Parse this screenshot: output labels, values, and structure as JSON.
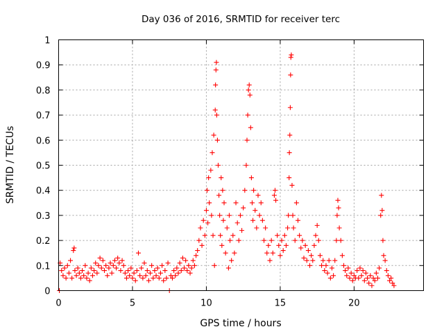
{
  "chart_data": {
    "type": "scatter",
    "title": "Day 036 of 2016, SRMTID for receiver terc",
    "xlabel": "GPS time / hours",
    "ylabel": "SRMTID / TECUs",
    "xlim": [
      0,
      24.7
    ],
    "ylim": [
      0,
      1
    ],
    "xticks": [
      0,
      5,
      10,
      15,
      20
    ],
    "xtick_labels": [
      "0",
      "5",
      "10",
      "15",
      "20"
    ],
    "yticks": [
      0,
      0.1,
      0.2,
      0.3,
      0.4,
      0.5,
      0.6,
      0.7,
      0.8,
      0.9,
      1
    ],
    "ytick_labels": [
      "0",
      "0.1",
      "0.2",
      "0.3",
      "0.4",
      "0.5",
      "0.6",
      "0.7",
      "0.8",
      "0.9",
      "1"
    ],
    "grid": true,
    "marker": "+",
    "series": [
      {
        "name": "SRMTID",
        "color": "#ff0000",
        "points": [
          [
            0.05,
            0.0
          ],
          [
            0.1,
            0.11
          ],
          [
            0.2,
            0.08
          ],
          [
            0.3,
            0.06
          ],
          [
            0.4,
            0.09
          ],
          [
            0.5,
            0.05
          ],
          [
            0.6,
            0.1
          ],
          [
            0.7,
            0.07
          ],
          [
            0.8,
            0.12
          ],
          [
            0.9,
            0.05
          ],
          [
            1.0,
            0.16
          ],
          [
            1.05,
            0.17
          ],
          [
            1.1,
            0.08
          ],
          [
            1.2,
            0.06
          ],
          [
            1.3,
            0.09
          ],
          [
            1.4,
            0.07
          ],
          [
            1.5,
            0.05
          ],
          [
            1.6,
            0.08
          ],
          [
            1.7,
            0.06
          ],
          [
            1.8,
            0.1
          ],
          [
            1.9,
            0.05
          ],
          [
            2.0,
            0.07
          ],
          [
            2.1,
            0.04
          ],
          [
            2.2,
            0.09
          ],
          [
            2.3,
            0.06
          ],
          [
            2.4,
            0.08
          ],
          [
            2.5,
            0.11
          ],
          [
            2.6,
            0.07
          ],
          [
            2.7,
            0.1
          ],
          [
            2.8,
            0.13
          ],
          [
            2.9,
            0.09
          ],
          [
            3.0,
            0.12
          ],
          [
            3.1,
            0.08
          ],
          [
            3.2,
            0.1
          ],
          [
            3.3,
            0.06
          ],
          [
            3.4,
            0.09
          ],
          [
            3.5,
            0.11
          ],
          [
            3.6,
            0.07
          ],
          [
            3.7,
            0.1
          ],
          [
            3.8,
            0.12
          ],
          [
            3.9,
            0.09
          ],
          [
            4.0,
            0.13
          ],
          [
            4.1,
            0.11
          ],
          [
            4.2,
            0.08
          ],
          [
            4.3,
            0.12
          ],
          [
            4.4,
            0.1
          ],
          [
            4.5,
            0.07
          ],
          [
            4.6,
            0.05
          ],
          [
            4.7,
            0.08
          ],
          [
            4.8,
            0.06
          ],
          [
            4.9,
            0.09
          ],
          [
            5.0,
            0.05
          ],
          [
            5.1,
            0.07
          ],
          [
            5.2,
            0.04
          ],
          [
            5.3,
            0.08
          ],
          [
            5.4,
            0.15
          ],
          [
            5.5,
            0.06
          ],
          [
            5.6,
            0.09
          ],
          [
            5.7,
            0.05
          ],
          [
            5.8,
            0.11
          ],
          [
            5.9,
            0.06
          ],
          [
            6.0,
            0.08
          ],
          [
            6.1,
            0.04
          ],
          [
            6.2,
            0.07
          ],
          [
            6.3,
            0.1
          ],
          [
            6.4,
            0.05
          ],
          [
            6.5,
            0.08
          ],
          [
            6.6,
            0.06
          ],
          [
            6.7,
            0.09
          ],
          [
            6.8,
            0.05
          ],
          [
            6.9,
            0.07
          ],
          [
            7.0,
            0.1
          ],
          [
            7.1,
            0.04
          ],
          [
            7.2,
            0.08
          ],
          [
            7.3,
            0.05
          ],
          [
            7.4,
            0.11
          ],
          [
            7.5,
            0.0
          ],
          [
            7.6,
            0.06
          ],
          [
            7.7,
            0.05
          ],
          [
            7.8,
            0.08
          ],
          [
            7.9,
            0.06
          ],
          [
            8.0,
            0.09
          ],
          [
            8.1,
            0.07
          ],
          [
            8.2,
            0.11
          ],
          [
            8.3,
            0.08
          ],
          [
            8.4,
            0.13
          ],
          [
            8.5,
            0.09
          ],
          [
            8.6,
            0.12
          ],
          [
            8.7,
            0.08
          ],
          [
            8.8,
            0.1
          ],
          [
            8.9,
            0.07
          ],
          [
            9.0,
            0.09
          ],
          [
            9.1,
            0.12
          ],
          [
            9.2,
            0.1
          ],
          [
            9.3,
            0.14
          ],
          [
            9.4,
            0.16
          ],
          [
            9.5,
            0.2
          ],
          [
            9.6,
            0.25
          ],
          [
            9.7,
            0.18
          ],
          [
            9.8,
            0.28
          ],
          [
            9.9,
            0.22
          ],
          [
            10.0,
            0.32
          ],
          [
            10.05,
            0.4
          ],
          [
            10.1,
            0.27
          ],
          [
            10.15,
            0.45
          ],
          [
            10.2,
            0.35
          ],
          [
            10.3,
            0.48
          ],
          [
            10.35,
            0.3
          ],
          [
            10.4,
            0.55
          ],
          [
            10.45,
            0.22
          ],
          [
            10.5,
            0.62
          ],
          [
            10.55,
            0.1
          ],
          [
            10.6,
            0.72
          ],
          [
            10.62,
            0.82
          ],
          [
            10.65,
            0.88
          ],
          [
            10.68,
            0.91
          ],
          [
            10.7,
            0.7
          ],
          [
            10.75,
            0.6
          ],
          [
            10.8,
            0.5
          ],
          [
            10.85,
            0.38
          ],
          [
            10.9,
            0.3
          ],
          [
            10.95,
            0.22
          ],
          [
            11.0,
            0.45
          ],
          [
            11.05,
            0.18
          ],
          [
            11.1,
            0.4
          ],
          [
            11.15,
            0.28
          ],
          [
            11.2,
            0.35
          ],
          [
            11.3,
            0.15
          ],
          [
            11.4,
            0.25
          ],
          [
            11.5,
            0.09
          ],
          [
            11.55,
            0.3
          ],
          [
            11.6,
            0.2
          ],
          [
            11.7,
            0.12
          ],
          [
            11.8,
            0.22
          ],
          [
            11.9,
            0.15
          ],
          [
            12.0,
            0.35
          ],
          [
            12.1,
            0.27
          ],
          [
            12.2,
            0.2
          ],
          [
            12.3,
            0.3
          ],
          [
            12.4,
            0.24
          ],
          [
            12.5,
            0.33
          ],
          [
            12.6,
            0.4
          ],
          [
            12.7,
            0.5
          ],
          [
            12.75,
            0.6
          ],
          [
            12.8,
            0.7
          ],
          [
            12.85,
            0.8
          ],
          [
            12.9,
            0.82
          ],
          [
            12.95,
            0.78
          ],
          [
            13.0,
            0.65
          ],
          [
            13.05,
            0.45
          ],
          [
            13.1,
            0.35
          ],
          [
            13.15,
            0.28
          ],
          [
            13.2,
            0.4
          ],
          [
            13.3,
            0.32
          ],
          [
            13.4,
            0.25
          ],
          [
            13.5,
            0.38
          ],
          [
            13.6,
            0.3
          ],
          [
            13.7,
            0.35
          ],
          [
            13.8,
            0.28
          ],
          [
            13.9,
            0.2
          ],
          [
            14.0,
            0.25
          ],
          [
            14.1,
            0.15
          ],
          [
            14.2,
            0.18
          ],
          [
            14.3,
            0.12
          ],
          [
            14.4,
            0.2
          ],
          [
            14.5,
            0.15
          ],
          [
            14.6,
            0.38
          ],
          [
            14.65,
            0.4
          ],
          [
            14.7,
            0.36
          ],
          [
            14.8,
            0.22
          ],
          [
            14.9,
            0.18
          ],
          [
            15.0,
            0.14
          ],
          [
            15.1,
            0.2
          ],
          [
            15.2,
            0.16
          ],
          [
            15.3,
            0.22
          ],
          [
            15.4,
            0.18
          ],
          [
            15.5,
            0.25
          ],
          [
            15.55,
            0.3
          ],
          [
            15.6,
            0.45
          ],
          [
            15.62,
            0.55
          ],
          [
            15.65,
            0.62
          ],
          [
            15.68,
            0.73
          ],
          [
            15.7,
            0.86
          ],
          [
            15.72,
            0.93
          ],
          [
            15.75,
            0.94
          ],
          [
            15.8,
            0.42
          ],
          [
            15.85,
            0.3
          ],
          [
            15.9,
            0.25
          ],
          [
            16.0,
            0.2
          ],
          [
            16.1,
            0.35
          ],
          [
            16.2,
            0.28
          ],
          [
            16.3,
            0.22
          ],
          [
            16.4,
            0.17
          ],
          [
            16.5,
            0.2
          ],
          [
            16.6,
            0.13
          ],
          [
            16.7,
            0.18
          ],
          [
            16.8,
            0.12
          ],
          [
            16.9,
            0.16
          ],
          [
            17.0,
            0.1
          ],
          [
            17.1,
            0.14
          ],
          [
            17.2,
            0.12
          ],
          [
            17.3,
            0.18
          ],
          [
            17.4,
            0.22
          ],
          [
            17.5,
            0.26
          ],
          [
            17.6,
            0.2
          ],
          [
            17.7,
            0.14
          ],
          [
            17.8,
            0.1
          ],
          [
            17.9,
            0.12
          ],
          [
            18.0,
            0.08
          ],
          [
            18.1,
            0.1
          ],
          [
            18.2,
            0.07
          ],
          [
            18.3,
            0.12
          ],
          [
            18.4,
            0.05
          ],
          [
            18.5,
            0.09
          ],
          [
            18.6,
            0.06
          ],
          [
            18.7,
            0.12
          ],
          [
            18.8,
            0.2
          ],
          [
            18.85,
            0.3
          ],
          [
            18.9,
            0.36
          ],
          [
            18.95,
            0.33
          ],
          [
            19.0,
            0.25
          ],
          [
            19.1,
            0.2
          ],
          [
            19.2,
            0.14
          ],
          [
            19.3,
            0.1
          ],
          [
            19.4,
            0.08
          ],
          [
            19.5,
            0.06
          ],
          [
            19.6,
            0.09
          ],
          [
            19.7,
            0.05
          ],
          [
            19.8,
            0.07
          ],
          [
            19.9,
            0.04
          ],
          [
            20.0,
            0.06
          ],
          [
            20.1,
            0.05
          ],
          [
            20.2,
            0.08
          ],
          [
            20.3,
            0.05
          ],
          [
            20.4,
            0.09
          ],
          [
            20.5,
            0.06
          ],
          [
            20.6,
            0.08
          ],
          [
            20.7,
            0.04
          ],
          [
            20.8,
            0.07
          ],
          [
            20.9,
            0.05
          ],
          [
            21.0,
            0.03
          ],
          [
            21.1,
            0.06
          ],
          [
            21.2,
            0.02
          ],
          [
            21.3,
            0.05
          ],
          [
            21.4,
            0.04
          ],
          [
            21.5,
            0.07
          ],
          [
            21.6,
            0.05
          ],
          [
            21.7,
            0.09
          ],
          [
            21.8,
            0.3
          ],
          [
            21.85,
            0.38
          ],
          [
            21.9,
            0.32
          ],
          [
            21.95,
            0.2
          ],
          [
            22.0,
            0.14
          ],
          [
            22.1,
            0.12
          ],
          [
            22.2,
            0.08
          ],
          [
            22.3,
            0.06
          ],
          [
            22.4,
            0.04
          ],
          [
            22.5,
            0.05
          ],
          [
            22.6,
            0.03
          ],
          [
            22.7,
            0.02
          ]
        ]
      }
    ]
  }
}
